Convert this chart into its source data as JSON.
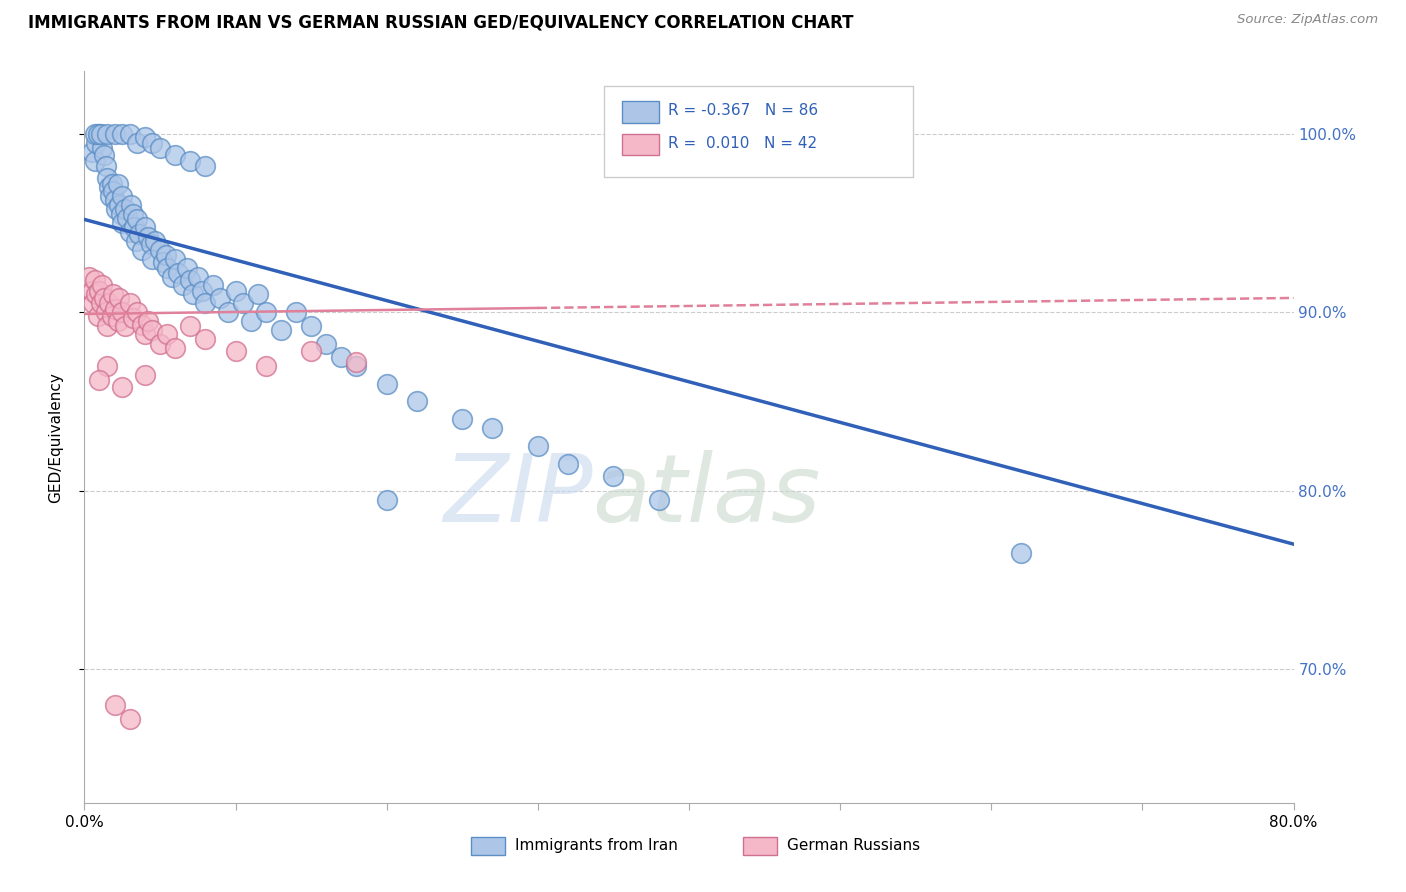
{
  "title": "IMMIGRANTS FROM IRAN VS GERMAN RUSSIAN GED/EQUIVALENCY CORRELATION CHART",
  "source": "Source: ZipAtlas.com",
  "ylabel": "GED/Equivalency",
  "watermark": "ZIPatlas",
  "legend_iran": "Immigrants from Iran",
  "legend_german": "German Russians",
  "legend_R_iran": "-0.367",
  "legend_N_iran": "86",
  "legend_R_german": "0.010",
  "legend_N_german": "42",
  "xlim": [
    0.0,
    0.8
  ],
  "ylim": [
    0.625,
    1.035
  ],
  "yticks": [
    0.7,
    0.8,
    0.9,
    1.0
  ],
  "ytick_labels": [
    "70.0%",
    "80.0%",
    "90.0%",
    "100.0%"
  ],
  "xticks": [
    0.0,
    0.1,
    0.2,
    0.3,
    0.4,
    0.5,
    0.6,
    0.7,
    0.8
  ],
  "xtick_labels": [
    "0.0%",
    "",
    "",
    "",
    "",
    "",
    "",
    "",
    "80.0%"
  ],
  "color_iran": "#adc6e8",
  "color_german": "#f5b8c8",
  "edge_iran": "#5b8ec4",
  "edge_german": "#d07090",
  "line_color_iran": "#3060b8",
  "line_color_german": "#e0809a",
  "background_color": "#ffffff",
  "iran_line_x": [
    0.0,
    0.8
  ],
  "iran_line_y": [
    0.952,
    0.77
  ],
  "german_line_x": [
    0.0,
    0.8
  ],
  "german_line_y": [
    0.899,
    0.908
  ],
  "iran_scatter_x": [
    0.005,
    0.007,
    0.008,
    0.01,
    0.012,
    0.013,
    0.014,
    0.015,
    0.016,
    0.017,
    0.018,
    0.019,
    0.02,
    0.021,
    0.022,
    0.023,
    0.024,
    0.025,
    0.025,
    0.027,
    0.028,
    0.03,
    0.031,
    0.032,
    0.033,
    0.034,
    0.035,
    0.036,
    0.038,
    0.04,
    0.042,
    0.044,
    0.045,
    0.047,
    0.05,
    0.052,
    0.054,
    0.055,
    0.058,
    0.06,
    0.062,
    0.065,
    0.068,
    0.07,
    0.072,
    0.075,
    0.078,
    0.08,
    0.085,
    0.09,
    0.095,
    0.1,
    0.105,
    0.11,
    0.115,
    0.12,
    0.13,
    0.14,
    0.15,
    0.16,
    0.17,
    0.18,
    0.2,
    0.22,
    0.25,
    0.27,
    0.3,
    0.32,
    0.35,
    0.38,
    0.007,
    0.009,
    0.011,
    0.015,
    0.02,
    0.025,
    0.03,
    0.035,
    0.04,
    0.045,
    0.05,
    0.06,
    0.07,
    0.08,
    0.62,
    0.2
  ],
  "iran_scatter_y": [
    0.99,
    0.985,
    0.995,
    1.0,
    0.992,
    0.988,
    0.982,
    0.975,
    0.97,
    0.965,
    0.972,
    0.968,
    0.963,
    0.958,
    0.972,
    0.96,
    0.955,
    0.965,
    0.95,
    0.958,
    0.953,
    0.945,
    0.96,
    0.955,
    0.948,
    0.94,
    0.952,
    0.944,
    0.935,
    0.948,
    0.942,
    0.938,
    0.93,
    0.94,
    0.935,
    0.928,
    0.932,
    0.925,
    0.92,
    0.93,
    0.922,
    0.915,
    0.925,
    0.918,
    0.91,
    0.92,
    0.912,
    0.905,
    0.915,
    0.908,
    0.9,
    0.912,
    0.905,
    0.895,
    0.91,
    0.9,
    0.89,
    0.9,
    0.892,
    0.882,
    0.875,
    0.87,
    0.86,
    0.85,
    0.84,
    0.835,
    0.825,
    0.815,
    0.808,
    0.795,
    1.0,
    1.0,
    1.0,
    1.0,
    1.0,
    1.0,
    1.0,
    0.995,
    0.998,
    0.995,
    0.992,
    0.988,
    0.985,
    0.982,
    0.765,
    0.795
  ],
  "german_scatter_x": [
    0.003,
    0.005,
    0.006,
    0.007,
    0.008,
    0.009,
    0.01,
    0.011,
    0.012,
    0.013,
    0.014,
    0.015,
    0.016,
    0.018,
    0.019,
    0.02,
    0.022,
    0.023,
    0.025,
    0.027,
    0.03,
    0.032,
    0.035,
    0.038,
    0.04,
    0.042,
    0.045,
    0.05,
    0.055,
    0.06,
    0.07,
    0.08,
    0.1,
    0.12,
    0.15,
    0.18,
    0.04,
    0.025,
    0.015,
    0.01,
    0.02,
    0.03
  ],
  "german_scatter_y": [
    0.92,
    0.912,
    0.905,
    0.918,
    0.91,
    0.898,
    0.912,
    0.905,
    0.915,
    0.908,
    0.9,
    0.892,
    0.905,
    0.898,
    0.91,
    0.902,
    0.895,
    0.908,
    0.9,
    0.892,
    0.905,
    0.897,
    0.9,
    0.893,
    0.888,
    0.895,
    0.89,
    0.882,
    0.888,
    0.88,
    0.892,
    0.885,
    0.878,
    0.87,
    0.878,
    0.872,
    0.865,
    0.858,
    0.87,
    0.862,
    0.68,
    0.672
  ]
}
